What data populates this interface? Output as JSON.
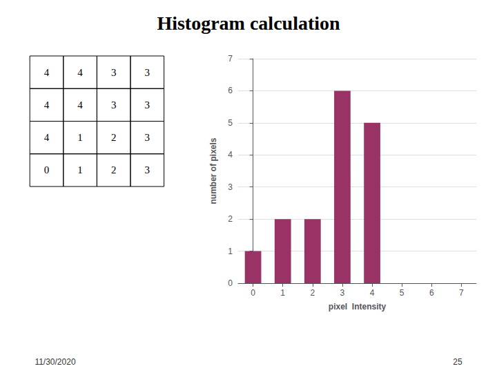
{
  "chart_data": {
    "type": "bar",
    "title": "Histogram calculation",
    "x": [
      0,
      1,
      2,
      3,
      4,
      5,
      6,
      7
    ],
    "values": [
      1,
      2,
      2,
      6,
      5,
      0,
      0,
      0
    ],
    "color": "#993366",
    "xlabel": "pixel  Intensity",
    "ylabel": "number of pixels",
    "xlim": [
      -0.5,
      7.5
    ],
    "xticks": [
      0,
      1,
      2,
      3,
      4,
      5,
      6,
      7
    ],
    "ylim": [
      0,
      7
    ],
    "yticks": [
      0,
      1,
      2,
      3,
      4,
      5,
      6,
      7
    ],
    "grid": true,
    "table": [
      [
        4,
        4,
        3,
        3
      ],
      [
        4,
        4,
        3,
        3
      ],
      [
        4,
        1,
        2,
        3
      ],
      [
        0,
        1,
        2,
        3
      ]
    ],
    "annotations": [
      "11/30/2020",
      "25"
    ]
  }
}
